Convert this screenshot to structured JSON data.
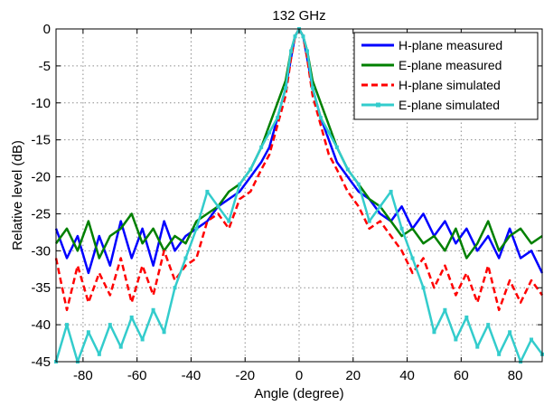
{
  "chart_data": {
    "type": "line",
    "title": "132 GHz",
    "xlabel": "Angle (degree)",
    "ylabel": "Relative level (dB)",
    "xlim": [
      -90,
      90
    ],
    "ylim": [
      -45,
      0
    ],
    "xticks": [
      -80,
      -60,
      -40,
      -20,
      0,
      20,
      40,
      60,
      80
    ],
    "yticks": [
      0,
      -5,
      -10,
      -15,
      -20,
      -25,
      -30,
      -35,
      -40,
      -45
    ],
    "grid": true,
    "legend_position": "top-right",
    "series": [
      {
        "name": "H-plane measured",
        "color": "#0000ff",
        "style": "solid",
        "x": [
          -90,
          -86,
          -82,
          -78,
          -74,
          -70,
          -66,
          -62,
          -58,
          -54,
          -50,
          -46,
          -42,
          -38,
          -34,
          -30,
          -26,
          -22,
          -18,
          -14,
          -11,
          -8,
          -5,
          -3,
          -1.5,
          0,
          1.5,
          3,
          5,
          8,
          11,
          14,
          18,
          22,
          26,
          30,
          34,
          38,
          42,
          46,
          50,
          54,
          58,
          62,
          66,
          70,
          74,
          78,
          82,
          86,
          90
        ],
        "y": [
          -27,
          -31,
          -28,
          -33,
          -28,
          -32,
          -26,
          -31,
          -27,
          -32,
          -26,
          -30,
          -28,
          -27,
          -26,
          -24,
          -23,
          -22,
          -20,
          -18,
          -16,
          -12,
          -8,
          -4,
          -1,
          0,
          -1,
          -4,
          -8,
          -12,
          -15,
          -18,
          -20,
          -22,
          -23,
          -25,
          -26,
          -24,
          -27,
          -25,
          -28,
          -26,
          -29,
          -27,
          -30,
          -28,
          -31,
          -27,
          -31,
          -30,
          -33
        ]
      },
      {
        "name": "E-plane measured",
        "color": "#008000",
        "style": "solid",
        "x": [
          -90,
          -86,
          -82,
          -78,
          -74,
          -70,
          -66,
          -62,
          -58,
          -54,
          -50,
          -46,
          -42,
          -38,
          -34,
          -30,
          -26,
          -22,
          -18,
          -14,
          -11,
          -8,
          -5,
          -3,
          -1.5,
          0,
          1.5,
          3,
          5,
          8,
          11,
          14,
          18,
          22,
          26,
          30,
          34,
          38,
          42,
          46,
          50,
          54,
          58,
          62,
          66,
          70,
          74,
          78,
          82,
          86,
          90
        ],
        "y": [
          -29,
          -27,
          -30,
          -26,
          -31,
          -28,
          -27,
          -25,
          -29,
          -27,
          -30,
          -28,
          -29,
          -26,
          -25,
          -24,
          -22,
          -21,
          -19,
          -16,
          -13,
          -10,
          -7,
          -3,
          -1,
          0,
          -1,
          -3,
          -7,
          -10,
          -13,
          -16,
          -19,
          -21,
          -23,
          -24,
          -26,
          -28,
          -27,
          -29,
          -28,
          -30,
          -27,
          -31,
          -29,
          -26,
          -30,
          -28,
          -27,
          -29,
          -28
        ]
      },
      {
        "name": "H-plane simulated",
        "color": "#ff0000",
        "style": "dashed",
        "x": [
          -90,
          -86,
          -82,
          -78,
          -74,
          -70,
          -66,
          -62,
          -58,
          -54,
          -50,
          -46,
          -42,
          -38,
          -34,
          -30,
          -26,
          -22,
          -18,
          -14,
          -11,
          -8,
          -5,
          -3,
          -1.5,
          0,
          1.5,
          3,
          5,
          8,
          11,
          14,
          18,
          22,
          26,
          30,
          34,
          38,
          42,
          46,
          50,
          54,
          58,
          62,
          66,
          70,
          74,
          78,
          82,
          86,
          90
        ],
        "y": [
          -31,
          -38,
          -32,
          -37,
          -33,
          -36,
          -31,
          -37,
          -32,
          -36,
          -30,
          -34,
          -32,
          -31,
          -26,
          -25,
          -27,
          -23,
          -22,
          -19,
          -17,
          -13,
          -9,
          -4,
          -1,
          0,
          -1,
          -4,
          -9,
          -13,
          -17,
          -19,
          -22,
          -24,
          -27,
          -26,
          -28,
          -30,
          -33,
          -31,
          -35,
          -32,
          -36,
          -33,
          -37,
          -32,
          -38,
          -34,
          -37,
          -34,
          -36
        ]
      },
      {
        "name": "E-plane simulated",
        "color": "#33cccc",
        "style": "solid-marker",
        "x": [
          -90,
          -86,
          -82,
          -78,
          -74,
          -70,
          -66,
          -62,
          -58,
          -54,
          -50,
          -46,
          -42,
          -38,
          -34,
          -30,
          -26,
          -22,
          -18,
          -14,
          -11,
          -8,
          -5,
          -3,
          -1.5,
          0,
          1.5,
          3,
          5,
          8,
          11,
          14,
          18,
          22,
          26,
          30,
          34,
          38,
          42,
          46,
          50,
          54,
          58,
          62,
          66,
          70,
          74,
          78,
          82,
          86,
          90
        ],
        "y": [
          -45,
          -40,
          -45,
          -41,
          -44,
          -40,
          -43,
          -39,
          -42,
          -38,
          -41,
          -35,
          -31,
          -27,
          -22,
          -24,
          -26,
          -21,
          -19,
          -16,
          -14,
          -12,
          -8,
          -3,
          -1,
          0,
          -1,
          -3,
          -8,
          -12,
          -14,
          -16,
          -19,
          -21,
          -26,
          -24,
          -22,
          -27,
          -31,
          -35,
          -41,
          -38,
          -42,
          -39,
          -43,
          -40,
          -44,
          -41,
          -45,
          -42,
          -44
        ]
      }
    ]
  }
}
